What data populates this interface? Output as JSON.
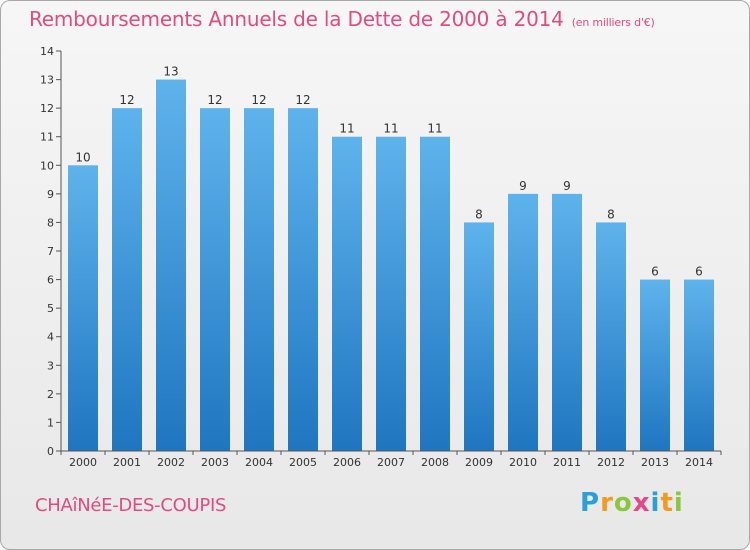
{
  "header": {
    "title": "Remboursements Annuels de la Dette de 2000 à 2014",
    "subtitle": "(en milliers d'€)"
  },
  "footer": {
    "commune": "CHAîNéE-DES-COUPIS",
    "logo": "Proxiti",
    "logo_letters": [
      {
        "ch": "P",
        "color": "#2a9fd8"
      },
      {
        "ch": "r",
        "color": "#f29a1f"
      },
      {
        "ch": "o",
        "color": "#8cc63f"
      },
      {
        "ch": "x",
        "color": "#e8468a"
      },
      {
        "ch": "i",
        "color": "#2a9fd8"
      },
      {
        "ch": "t",
        "color": "#f29a1f"
      },
      {
        "ch": "i",
        "color": "#8cc63f"
      }
    ]
  },
  "colors": {
    "title": "#e04c80",
    "bar_light": "#5fb3ec",
    "bar_dark": "#1f76c0",
    "axis": "#555555"
  },
  "chart_data": {
    "type": "bar",
    "title": "Remboursements Annuels de la Dette de 2000 à 2014",
    "subtitle": "(en milliers d'€)",
    "xlabel": "",
    "ylabel": "",
    "categories": [
      "2000",
      "2001",
      "2002",
      "2003",
      "2004",
      "2005",
      "2006",
      "2007",
      "2008",
      "2009",
      "2010",
      "2011",
      "2012",
      "2013",
      "2014"
    ],
    "values": [
      10,
      12,
      13,
      12,
      12,
      12,
      11,
      11,
      11,
      8,
      9,
      9,
      8,
      6,
      6
    ],
    "ylim": [
      0,
      14
    ],
    "yticks": [
      0,
      1,
      2,
      3,
      4,
      5,
      6,
      7,
      8,
      9,
      10,
      11,
      12,
      13,
      14
    ],
    "grid": false,
    "legend": "none"
  }
}
